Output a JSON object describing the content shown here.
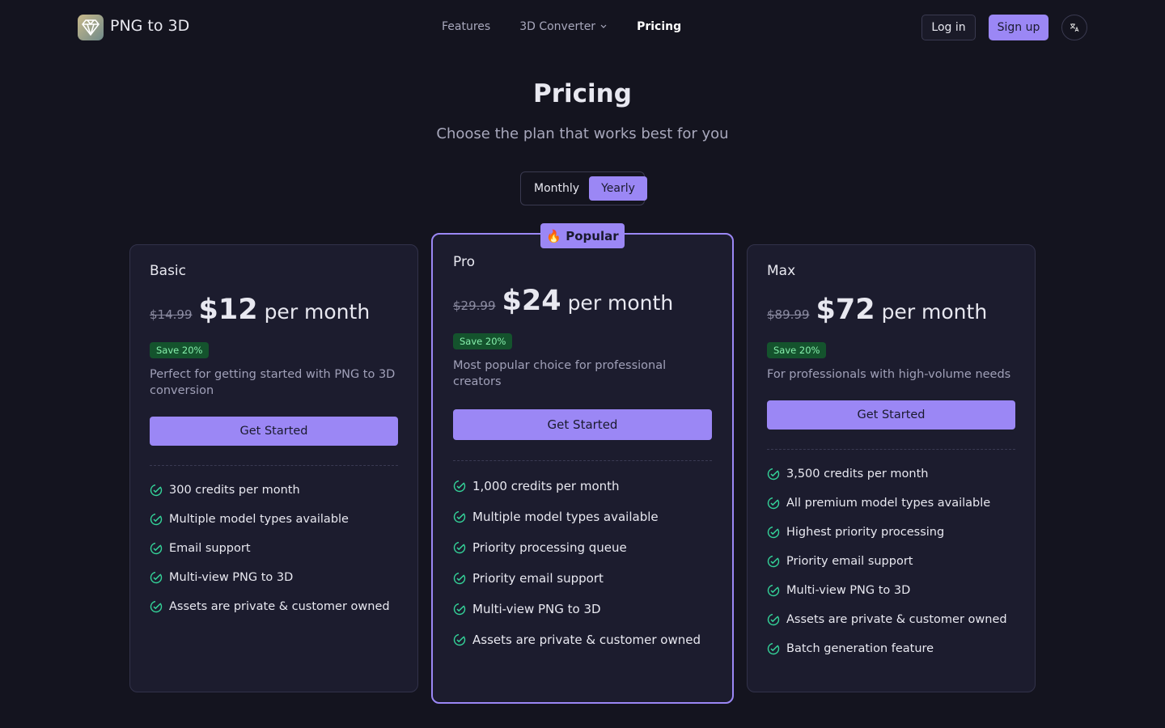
{
  "nav": {
    "brand": "PNG to 3D",
    "links": [
      "Features",
      "3D Converter",
      "Pricing"
    ],
    "login": "Log in",
    "signup": "Sign up"
  },
  "hero": {
    "title": "Pricing",
    "subtitle": "Choose the plan that works best for you"
  },
  "toggle": [
    "Monthly",
    "Yearly"
  ],
  "plans": [
    {
      "name": "Basic",
      "old_price": "$14.99",
      "price": "$12",
      "period": "per month",
      "badge": "Save 20%",
      "description": "Perfect for getting started with PNG to 3D conversion",
      "cta": "Get Started",
      "features": [
        "300 credits per month",
        "Multiple model types available",
        "Email support",
        "Multi-view PNG to 3D",
        "Assets are private & customer owned"
      ]
    },
    {
      "name": "Pro",
      "popular": "🔥 Popular",
      "old_price": "$29.99",
      "price": "$24",
      "period": "per month",
      "badge": "Save 20%",
      "description": "Most popular choice for professional creators",
      "cta": "Get Started",
      "features": [
        "1,000 credits per month",
        "Multiple model types available",
        "Priority processing queue",
        "Priority email support",
        "Multi-view PNG to 3D",
        "Assets are private & customer owned"
      ]
    },
    {
      "name": "Max",
      "old_price": "$89.99",
      "price": "$72",
      "period": "per month",
      "badge": "Save 20%",
      "description": "For professionals with high-volume needs",
      "cta": "Get Started",
      "features": [
        "3,500 credits per month",
        "All premium model types available",
        "Highest priority processing",
        "Priority email support",
        "Multi-view PNG to 3D",
        "Assets are private & customer owned",
        "Batch generation feature"
      ]
    }
  ]
}
